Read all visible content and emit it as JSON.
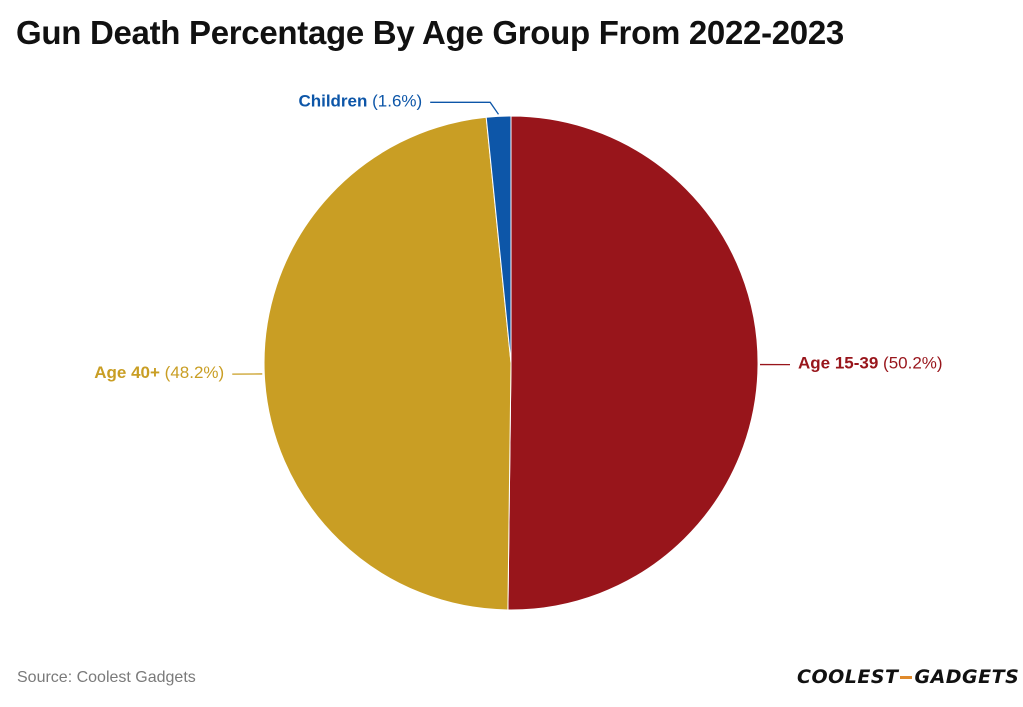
{
  "title": "Gun Death Percentage By Age Group From 2022-2023",
  "source": "Source: Coolest Gadgets",
  "logo": {
    "part1": "COOLEST",
    "part2": "GADGETS"
  },
  "chart_data": {
    "type": "pie",
    "title": "Gun Death Percentage By Age Group From 2022-2023",
    "slices": [
      {
        "name": "Age 15-39",
        "value": 50.2,
        "value_label": "(50.2%)",
        "color": "#98151b"
      },
      {
        "name": "Age 40+",
        "value": 48.2,
        "value_label": "(48.2%)",
        "color": "#c99e24"
      },
      {
        "name": "Children",
        "value": 1.6,
        "value_label": "(1.6%)",
        "color": "#0d56a8"
      }
    ],
    "start": "12 o'clock",
    "direction": "clockwise",
    "legend": "none",
    "labels": "outside with leader lines"
  }
}
